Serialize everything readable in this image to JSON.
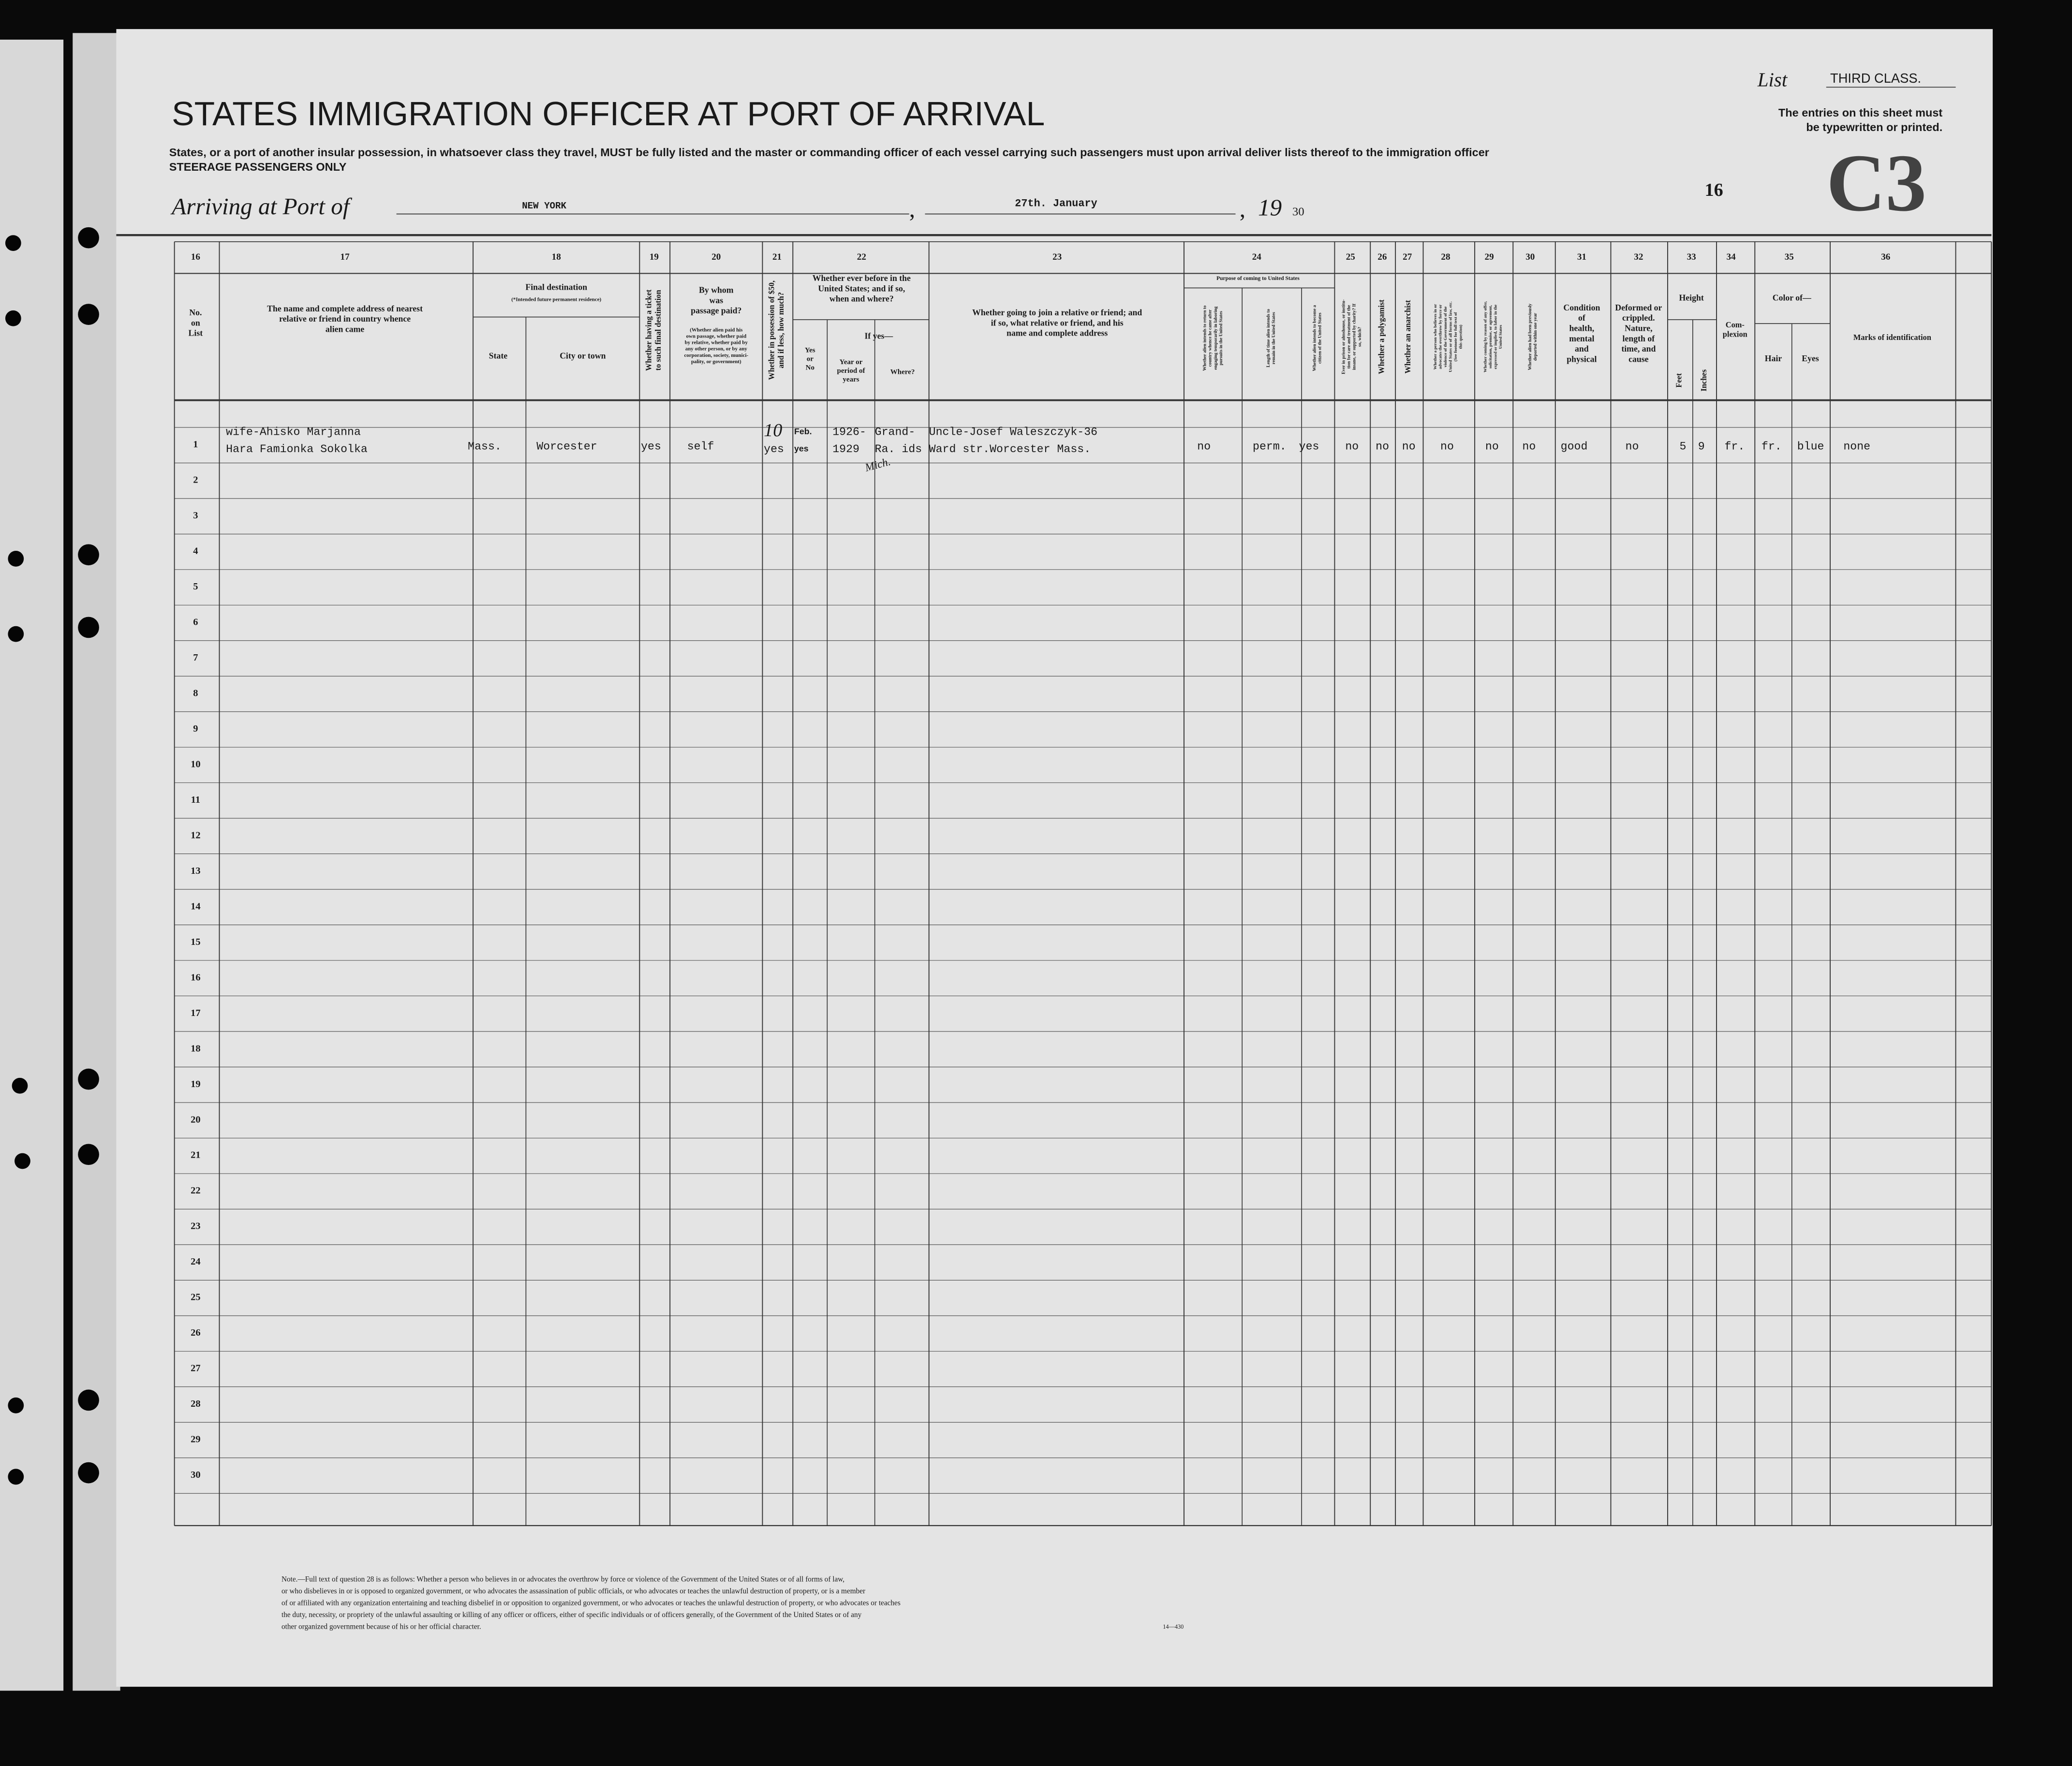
{
  "header": {
    "list_label": "List",
    "list_class": "THIRD CLASS.",
    "title": "STATES IMMIGRATION OFFICER AT PORT OF ARRIVAL",
    "instructions": "States, or a port of another insular possession, in whatsoever class they travel, MUST be fully listed and the master or commanding officer of each vessel carrying such passengers must upon arrival deliver lists thereof to the immigration officer",
    "steerage": "STEERAGE PASSENGERS ONLY",
    "typewritten_note": [
      "The entries on this sheet must",
      "be typewritten or printed."
    ],
    "stamp": "C3",
    "arriving_label": "Arriving at Port of",
    "port": "NEW YORK",
    "date": "27th. January",
    "year_prefix": "19",
    "year_suffix": "30",
    "sheet_number": "16"
  },
  "column_numbers": [
    "16",
    "17",
    "18",
    "19",
    "20",
    "21",
    "22",
    "23",
    "24",
    "25",
    "26",
    "27",
    "28",
    "29",
    "30",
    "31",
    "32",
    "33",
    "34",
    "35",
    "36"
  ],
  "column_headers": [
    [
      "No.",
      "on",
      "List"
    ],
    [
      "The name and complete address of nearest",
      "relative or friend in country whence",
      "alien came"
    ],
    [
      "Final destination"
    ],
    [
      "(*Intended future permanent residence)"
    ],
    [
      "State"
    ],
    [
      "City or town"
    ],
    [
      "Whether having a ticket",
      "to such final destination"
    ],
    [
      "By whom",
      "was",
      "passage paid?"
    ],
    [
      "(Whether alien paid his",
      "own passage, whether paid",
      "by relative, whether paid by",
      "any other person, or by any",
      "corporation, society, munici-",
      "pality, or government)"
    ],
    [
      "Whether in possession of $50,",
      "and if less, how much?"
    ],
    [
      "Whether ever before in the",
      "United States; and if so,",
      "when and where?"
    ],
    [
      "If yes—"
    ],
    [
      "Yes",
      "or",
      "No"
    ],
    [
      "Year or",
      "period of",
      "years"
    ],
    [
      "Where?"
    ],
    [
      "Whether going to join a relative or friend; and",
      "if so, what relative or friend, and his",
      "name and complete address"
    ],
    [
      "Purpose of coming to United States"
    ],
    [
      "Whether alien intends to return to",
      "country whence he came after",
      "engaging temporarily in laboring",
      "pursuits in the United States"
    ],
    [
      "Length of time alien intends to",
      "remain in the United States"
    ],
    [
      "Whether alien intends to become a",
      "citizen of the United States"
    ],
    [
      "Ever in prison or almshouse, or institu-",
      "tion for care and treatment of the",
      "insane, or supported by charity? If",
      "so, which?"
    ],
    [
      "Whether a polygamist"
    ],
    [
      "Whether an anarchist"
    ],
    [
      "Whether a person who believes in or",
      "advocates the overthrow by force or",
      "violence of the Government of the",
      "United States or of all forms of law, etc.",
      "(See footnote for full text of",
      "this question)"
    ],
    [
      "Whether coming by reason of any offer,",
      "solicitation, promise, or agreement,",
      "expressed or implied, to labor in the",
      "United States"
    ],
    [
      "Whether alien had been previously",
      "deported within one year"
    ],
    [
      "Condition",
      "of",
      "health,",
      "mental",
      "and",
      "physical"
    ],
    [
      "Deformed or",
      "crippled.",
      "Nature,",
      "length of",
      "time, and",
      "cause"
    ],
    [
      "Height"
    ],
    [
      "Feet"
    ],
    [
      "Inches"
    ],
    [
      "Com-",
      "plexion"
    ],
    [
      "Color of—"
    ],
    [
      "Hair"
    ],
    [
      "Eyes"
    ],
    [
      "Marks of identification"
    ]
  ],
  "row_numbers": [
    "1",
    "2",
    "3",
    "4",
    "5",
    "6",
    "7",
    "8",
    "9",
    "10",
    "11",
    "12",
    "13",
    "14",
    "15",
    "16",
    "17",
    "18",
    "19",
    "20",
    "21",
    "22",
    "23",
    "24",
    "25",
    "26",
    "27",
    "28",
    "29",
    "30"
  ],
  "entry": [
    [
      "wife-Ahisko Marjanna",
      "Hara Famionka Sokolka"
    ],
    [
      "Mass."
    ],
    [
      "Worcester"
    ],
    [
      "yes"
    ],
    [
      "self"
    ],
    [
      "10",
      "yes"
    ],
    [
      "Feb.",
      "yes"
    ],
    [
      "1926-",
      "1929"
    ],
    [
      "Grand-",
      "Ra. ids"
    ],
    [
      "Mich."
    ],
    [
      "Uncle-Josef Waleszczyk-36",
      "Ward str.Worcester Mass."
    ],
    [
      "no"
    ],
    [
      "perm."
    ],
    [
      "yes"
    ],
    [
      "no"
    ],
    [
      "no"
    ],
    [
      "no"
    ],
    [
      "no"
    ],
    [
      "no"
    ],
    [
      "no"
    ],
    [
      "good"
    ],
    [
      "no"
    ],
    [
      "5"
    ],
    [
      "9"
    ],
    [
      "fr."
    ],
    [
      "fr."
    ],
    [
      "blue"
    ],
    [
      "none"
    ]
  ],
  "note": [
    "Note.—Full text of question 28 is as follows: Whether a person who believes in or advocates the overthrow by force or violence of the Government of the United States or of all forms of law,",
    "or who disbelieves in or is opposed to organized government, or who advocates the assassination of public officials, or who advocates or teaches the unlawful destruction of property, or is a member",
    "of or affiliated with any organization entertaining and teaching disbelief in or opposition to organized government, or who advocates or teaches the unlawful destruction of property, or who advocates or teaches",
    "the duty, necessity, or propriety of the unlawful assaulting or killing of any officer or officers, either of specific individuals or of officers generally, of the Government of the United States or of any",
    "other organized government because of his or her official character."
  ],
  "form_number": "14—430"
}
